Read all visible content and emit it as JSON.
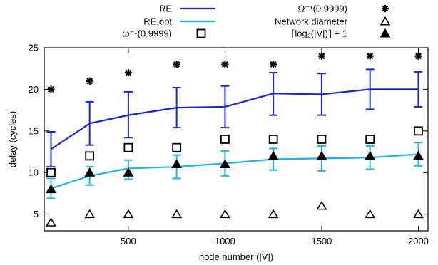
{
  "chart_data": {
    "type": "line",
    "title": "",
    "xlabel": "node number (|V|)",
    "ylabel": "delay (cycles)",
    "xlim": [
      65,
      2050
    ],
    "ylim": [
      3,
      25
    ],
    "xticks": [
      500,
      1000,
      1500,
      2000
    ],
    "yticks": [
      5,
      10,
      15,
      20,
      25
    ],
    "grid": false,
    "legend_position": "top",
    "x": [
      100,
      300,
      500,
      750,
      1000,
      1250,
      1500,
      1750,
      2000
    ],
    "series": [
      {
        "name": "RE",
        "kind": "line",
        "color": "#1428d2",
        "values": [
          12.8,
          15.9,
          16.9,
          17.8,
          17.9,
          19.5,
          19.4,
          20.0,
          20.0
        ],
        "err_low": [
          10.7,
          13.3,
          14.2,
          15.4,
          15.4,
          16.9,
          16.9,
          17.6,
          17.9
        ],
        "err_high": [
          14.9,
          18.5,
          19.7,
          20.2,
          20.4,
          22.0,
          21.9,
          22.4,
          22.1
        ]
      },
      {
        "name": "RE,opt",
        "kind": "line",
        "color": "#1eb4eb",
        "values": [
          8.1,
          9.6,
          10.5,
          10.7,
          11.1,
          11.6,
          11.7,
          11.8,
          12.2
        ],
        "err_low": [
          6.9,
          8.5,
          9.2,
          9.3,
          9.6,
          10.3,
          10.2,
          10.4,
          10.8
        ],
        "err_high": [
          9.3,
          10.7,
          11.5,
          12.1,
          12.6,
          12.9,
          13.2,
          13.2,
          13.6
        ]
      },
      {
        "name": "Ω⁻¹(0.9999)",
        "kind": "marker",
        "marker": "asterisk",
        "values": [
          20,
          21,
          22,
          23,
          23,
          23,
          24,
          24,
          24
        ]
      },
      {
        "name": "ω⁻¹(0.9999)",
        "kind": "marker",
        "marker": "square-open",
        "values": [
          10,
          12,
          13,
          13,
          14,
          14,
          14,
          14,
          15
        ]
      },
      {
        "name": "Network diameter",
        "kind": "marker",
        "marker": "triangle-open",
        "values": [
          4,
          5,
          5,
          5,
          5,
          5,
          6,
          5,
          5
        ]
      },
      {
        "name": "⌈log₂(|V|)⌉ + 1",
        "kind": "marker",
        "marker": "triangle-filled",
        "values": [
          8,
          10,
          10,
          11,
          11,
          12,
          12,
          12,
          12
        ]
      }
    ]
  }
}
